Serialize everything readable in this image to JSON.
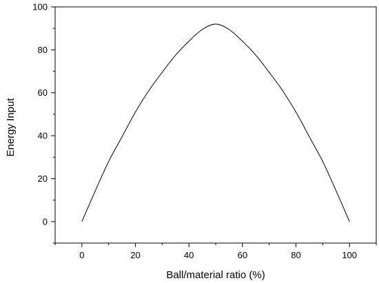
{
  "chart_data": {
    "type": "line",
    "title": "",
    "xlabel": "Ball/material ratio (%)",
    "ylabel": "Energy Input",
    "xlim": [
      -10,
      110
    ],
    "ylim": [
      -10,
      100
    ],
    "xticks": [
      0,
      20,
      40,
      60,
      80,
      100
    ],
    "yticks": [
      0,
      20,
      40,
      60,
      80,
      100
    ],
    "grid": false,
    "legend": "none",
    "series": [
      {
        "x": [
          0,
          5,
          10,
          15,
          20,
          25,
          30,
          35,
          40,
          45,
          50,
          55,
          60,
          65,
          70,
          75,
          80,
          85,
          90,
          95,
          100
        ],
        "y": [
          0,
          14.3,
          28,
          39.5,
          51,
          61,
          69.5,
          77.5,
          84,
          89.5,
          92,
          89.5,
          84,
          77.5,
          69.5,
          61,
          51,
          39.5,
          28,
          14.3,
          0
        ]
      }
    ]
  }
}
